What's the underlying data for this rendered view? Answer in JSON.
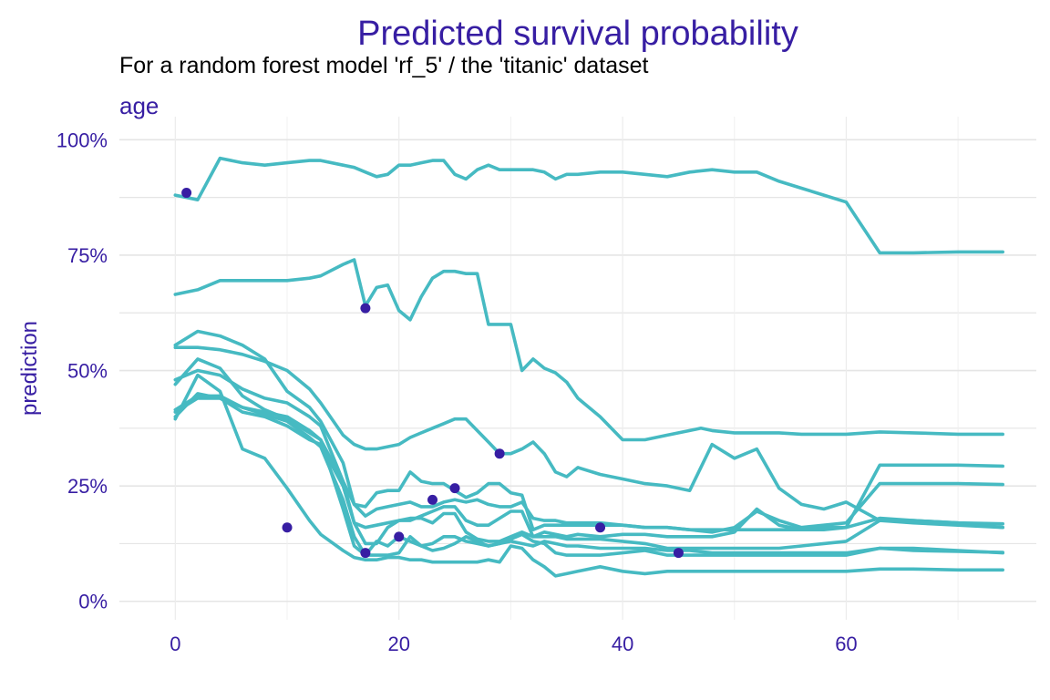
{
  "colors": {
    "line": "#46BAC2",
    "point": "#371EA3",
    "text_accent": "#371EA3",
    "subtitle_text": "#000000",
    "grid": "#E5E5E5",
    "background": "#FFFFFF"
  },
  "chart_data": {
    "type": "line",
    "title": "Predicted survival probability",
    "subtitle": "For a random forest model 'rf_5' / the 'titanic' dataset",
    "facet_label": "age",
    "xlabel": "",
    "ylabel": "prediction",
    "xlim": [
      -5,
      77
    ],
    "ylim": [
      -0.04,
      1.05
    ],
    "x_ticks": [
      0,
      20,
      40,
      60
    ],
    "x_tick_labels": [
      "0",
      "20",
      "40",
      "60"
    ],
    "y_ticks": [
      0,
      0.25,
      0.5,
      0.75,
      1.0
    ],
    "y_tick_labels": [
      "0%",
      "25%",
      "50%",
      "75%",
      "100%"
    ],
    "y_minor_ticks": [
      0.125,
      0.375,
      0.625,
      0.875
    ],
    "x_minor_ticks": [
      10,
      30,
      50,
      70
    ],
    "grid": true,
    "legend": "none",
    "series": [
      {
        "x": [
          0,
          2,
          4,
          6,
          8,
          10,
          12,
          13,
          15,
          16,
          17,
          18,
          19,
          20,
          21,
          22,
          23,
          24,
          25,
          26,
          27,
          28,
          29,
          30,
          31,
          32,
          33,
          34,
          35,
          36,
          38,
          40,
          42,
          44,
          46,
          48,
          50,
          52,
          54,
          56,
          58,
          60,
          63,
          66,
          70,
          74
        ],
        "y": [
          0.88,
          0.87,
          0.96,
          0.95,
          0.945,
          0.95,
          0.955,
          0.955,
          0.945,
          0.94,
          0.93,
          0.92,
          0.925,
          0.945,
          0.945,
          0.95,
          0.955,
          0.955,
          0.925,
          0.915,
          0.935,
          0.945,
          0.935,
          0.935,
          0.935,
          0.935,
          0.93,
          0.915,
          0.925,
          0.925,
          0.93,
          0.93,
          0.925,
          0.92,
          0.93,
          0.935,
          0.93,
          0.93,
          0.91,
          0.895,
          0.88,
          0.865,
          0.755,
          0.755,
          0.757,
          0.757
        ]
      },
      {
        "x": [
          0,
          2,
          4,
          6,
          8,
          10,
          12,
          13,
          15,
          16,
          17,
          18,
          19,
          20,
          21,
          22,
          23,
          24,
          25,
          26,
          27,
          28,
          29,
          30,
          31,
          32,
          33,
          34,
          35,
          36,
          38,
          40,
          42,
          44,
          46,
          47,
          48,
          50,
          52,
          54,
          56,
          58,
          60,
          63,
          66,
          70,
          74
        ],
        "y": [
          0.665,
          0.675,
          0.695,
          0.695,
          0.695,
          0.695,
          0.7,
          0.705,
          0.73,
          0.74,
          0.64,
          0.68,
          0.685,
          0.63,
          0.61,
          0.66,
          0.7,
          0.715,
          0.715,
          0.71,
          0.71,
          0.6,
          0.6,
          0.6,
          0.5,
          0.525,
          0.505,
          0.495,
          0.475,
          0.44,
          0.4,
          0.35,
          0.35,
          0.36,
          0.37,
          0.375,
          0.37,
          0.365,
          0.365,
          0.365,
          0.362,
          0.362,
          0.362,
          0.367,
          0.365,
          0.362,
          0.362
        ]
      },
      {
        "x": [
          0,
          2,
          4,
          6,
          8,
          10,
          12,
          13,
          15,
          16,
          17,
          18,
          19,
          20,
          21,
          22,
          23,
          24,
          25,
          26,
          27,
          28,
          29,
          30,
          31,
          32,
          33,
          34,
          35,
          36,
          38,
          40,
          42,
          44,
          46,
          48,
          50,
          52,
          54,
          56,
          58,
          60,
          63,
          66,
          70,
          74
        ],
        "y": [
          0.55,
          0.55,
          0.545,
          0.535,
          0.52,
          0.5,
          0.46,
          0.43,
          0.36,
          0.34,
          0.33,
          0.33,
          0.335,
          0.34,
          0.355,
          0.365,
          0.375,
          0.385,
          0.395,
          0.395,
          0.37,
          0.345,
          0.32,
          0.32,
          0.33,
          0.345,
          0.32,
          0.28,
          0.27,
          0.29,
          0.275,
          0.265,
          0.255,
          0.25,
          0.24,
          0.34,
          0.31,
          0.33,
          0.245,
          0.21,
          0.2,
          0.215,
          0.175,
          0.175,
          0.17,
          0.16
        ]
      },
      {
        "x": [
          0,
          2,
          4,
          6,
          8,
          10,
          12,
          13,
          15,
          16,
          17,
          18,
          19,
          20,
          21,
          22,
          23,
          24,
          25,
          26,
          27,
          28,
          29,
          30,
          31,
          32,
          33,
          34,
          35,
          36,
          38,
          40,
          42,
          44,
          46,
          48,
          50,
          52,
          54,
          56,
          58,
          60,
          63,
          66,
          70,
          74
        ],
        "y": [
          0.555,
          0.585,
          0.575,
          0.555,
          0.525,
          0.455,
          0.42,
          0.39,
          0.3,
          0.21,
          0.205,
          0.235,
          0.24,
          0.24,
          0.28,
          0.26,
          0.255,
          0.255,
          0.24,
          0.225,
          0.235,
          0.255,
          0.255,
          0.235,
          0.23,
          0.155,
          0.165,
          0.165,
          0.165,
          0.165,
          0.165,
          0.165,
          0.16,
          0.16,
          0.155,
          0.155,
          0.155,
          0.155,
          0.155,
          0.155,
          0.155,
          0.16,
          0.295,
          0.295,
          0.295,
          0.293
        ]
      },
      {
        "x": [
          0,
          2,
          4,
          6,
          8,
          10,
          12,
          13,
          15,
          16,
          17,
          18,
          19,
          20,
          21,
          22,
          23,
          24,
          25,
          26,
          27,
          28,
          29,
          30,
          31,
          32,
          33,
          34,
          35,
          36,
          38,
          40,
          42,
          44,
          46,
          48,
          50,
          52,
          54,
          56,
          58,
          60,
          63,
          66,
          70,
          74
        ],
        "y": [
          0.48,
          0.5,
          0.49,
          0.46,
          0.44,
          0.43,
          0.4,
          0.38,
          0.26,
          0.21,
          0.185,
          0.2,
          0.205,
          0.21,
          0.215,
          0.205,
          0.205,
          0.215,
          0.22,
          0.215,
          0.22,
          0.21,
          0.205,
          0.205,
          0.215,
          0.18,
          0.175,
          0.175,
          0.17,
          0.17,
          0.17,
          0.165,
          0.16,
          0.16,
          0.155,
          0.15,
          0.16,
          0.195,
          0.175,
          0.16,
          0.165,
          0.17,
          0.255,
          0.255,
          0.255,
          0.253
        ]
      },
      {
        "x": [
          0,
          2,
          4,
          6,
          8,
          10,
          12,
          13,
          15,
          16,
          17,
          18,
          19,
          20,
          21,
          22,
          23,
          24,
          25,
          26,
          27,
          28,
          29,
          30,
          31,
          32,
          33,
          34,
          35,
          36,
          38,
          40,
          42,
          44,
          46,
          48,
          50,
          52,
          54,
          56,
          58,
          60,
          63,
          66,
          70,
          74
        ],
        "y": [
          0.47,
          0.525,
          0.505,
          0.445,
          0.415,
          0.395,
          0.365,
          0.35,
          0.26,
          0.17,
          0.16,
          0.165,
          0.17,
          0.175,
          0.175,
          0.185,
          0.195,
          0.205,
          0.205,
          0.175,
          0.165,
          0.165,
          0.18,
          0.195,
          0.195,
          0.14,
          0.15,
          0.145,
          0.14,
          0.145,
          0.14,
          0.145,
          0.145,
          0.14,
          0.14,
          0.14,
          0.15,
          0.2,
          0.165,
          0.155,
          0.16,
          0.16,
          0.18,
          0.175,
          0.17,
          0.168
        ]
      },
      {
        "x": [
          0,
          2,
          4,
          6,
          8,
          10,
          12,
          13,
          15,
          16,
          17,
          18,
          19,
          20,
          21,
          22,
          23,
          24,
          25,
          26,
          27,
          28,
          29,
          30,
          31,
          32,
          33,
          34,
          35,
          36,
          38,
          40,
          42,
          44,
          46,
          48,
          50,
          52,
          54,
          56,
          58,
          60,
          63,
          66,
          70,
          74
        ],
        "y": [
          0.41,
          0.44,
          0.44,
          0.42,
          0.405,
          0.39,
          0.355,
          0.335,
          0.22,
          0.14,
          0.1,
          0.13,
          0.12,
          0.14,
          0.13,
          0.12,
          0.125,
          0.14,
          0.14,
          0.13,
          0.125,
          0.12,
          0.125,
          0.13,
          0.125,
          0.12,
          0.13,
          0.125,
          0.12,
          0.12,
          0.115,
          0.115,
          0.115,
          0.11,
          0.11,
          0.105,
          0.105,
          0.105,
          0.105,
          0.105,
          0.105,
          0.105,
          0.115,
          0.11,
          0.108,
          0.106
        ]
      },
      {
        "x": [
          0,
          2,
          4,
          6,
          8,
          10,
          12,
          13,
          15,
          16,
          17,
          18,
          19,
          20,
          21,
          22,
          23,
          24,
          25,
          26,
          27,
          28,
          29,
          30,
          31,
          32,
          33,
          34,
          35,
          36,
          38,
          40,
          42,
          44,
          46,
          48,
          50,
          52,
          54,
          56,
          58,
          60,
          63,
          66,
          70,
          74
        ],
        "y": [
          0.4,
          0.45,
          0.44,
          0.41,
          0.4,
          0.38,
          0.35,
          0.34,
          0.25,
          0.17,
          0.125,
          0.125,
          0.16,
          0.175,
          0.18,
          0.18,
          0.17,
          0.19,
          0.19,
          0.15,
          0.135,
          0.13,
          0.13,
          0.14,
          0.15,
          0.14,
          0.14,
          0.14,
          0.135,
          0.135,
          0.135,
          0.13,
          0.125,
          0.115,
          0.115,
          0.115,
          0.115,
          0.115,
          0.115,
          0.12,
          0.125,
          0.13,
          0.175,
          0.17,
          0.165,
          0.16
        ]
      },
      {
        "x": [
          0,
          2,
          4,
          6,
          8,
          10,
          12,
          13,
          15,
          16,
          17,
          18,
          19,
          20,
          21,
          22,
          23,
          24,
          25,
          26,
          27,
          28,
          29,
          30,
          31,
          32,
          33,
          34,
          35,
          36,
          38,
          40,
          42,
          44,
          46,
          48,
          50,
          52,
          54,
          56,
          58,
          60,
          63,
          66,
          70,
          74
        ],
        "y": [
          0.415,
          0.445,
          0.445,
          0.42,
          0.41,
          0.4,
          0.37,
          0.35,
          0.2,
          0.12,
          0.1,
          0.1,
          0.1,
          0.105,
          0.14,
          0.12,
          0.11,
          0.115,
          0.125,
          0.14,
          0.13,
          0.12,
          0.125,
          0.135,
          0.145,
          0.13,
          0.125,
          0.105,
          0.1,
          0.1,
          0.1,
          0.105,
          0.11,
          0.1,
          0.1,
          0.1,
          0.1,
          0.1,
          0.1,
          0.1,
          0.1,
          0.1,
          0.115,
          0.115,
          0.11,
          0.105
        ]
      },
      {
        "x": [
          0,
          2,
          4,
          6,
          8,
          10,
          12,
          13,
          15,
          16,
          17,
          18,
          19,
          20,
          21,
          22,
          23,
          24,
          25,
          26,
          27,
          28,
          29,
          30,
          31,
          32,
          33,
          34,
          35,
          36,
          38,
          40,
          42,
          44,
          46,
          48,
          50,
          52,
          54,
          56,
          58,
          60,
          63,
          66,
          70,
          74
        ],
        "y": [
          0.395,
          0.49,
          0.455,
          0.33,
          0.31,
          0.245,
          0.175,
          0.145,
          0.11,
          0.095,
          0.09,
          0.09,
          0.095,
          0.095,
          0.09,
          0.09,
          0.085,
          0.085,
          0.085,
          0.085,
          0.085,
          0.09,
          0.085,
          0.12,
          0.115,
          0.09,
          0.075,
          0.055,
          0.06,
          0.065,
          0.075,
          0.065,
          0.06,
          0.065,
          0.065,
          0.065,
          0.065,
          0.065,
          0.065,
          0.065,
          0.065,
          0.065,
          0.07,
          0.07,
          0.068,
          0.068
        ]
      }
    ],
    "observations": {
      "x": [
        1,
        17,
        29,
        25,
        23,
        10,
        20,
        17,
        38,
        45
      ],
      "y": [
        0.885,
        0.635,
        0.32,
        0.245,
        0.22,
        0.16,
        0.14,
        0.105,
        0.16,
        0.105
      ]
    }
  }
}
